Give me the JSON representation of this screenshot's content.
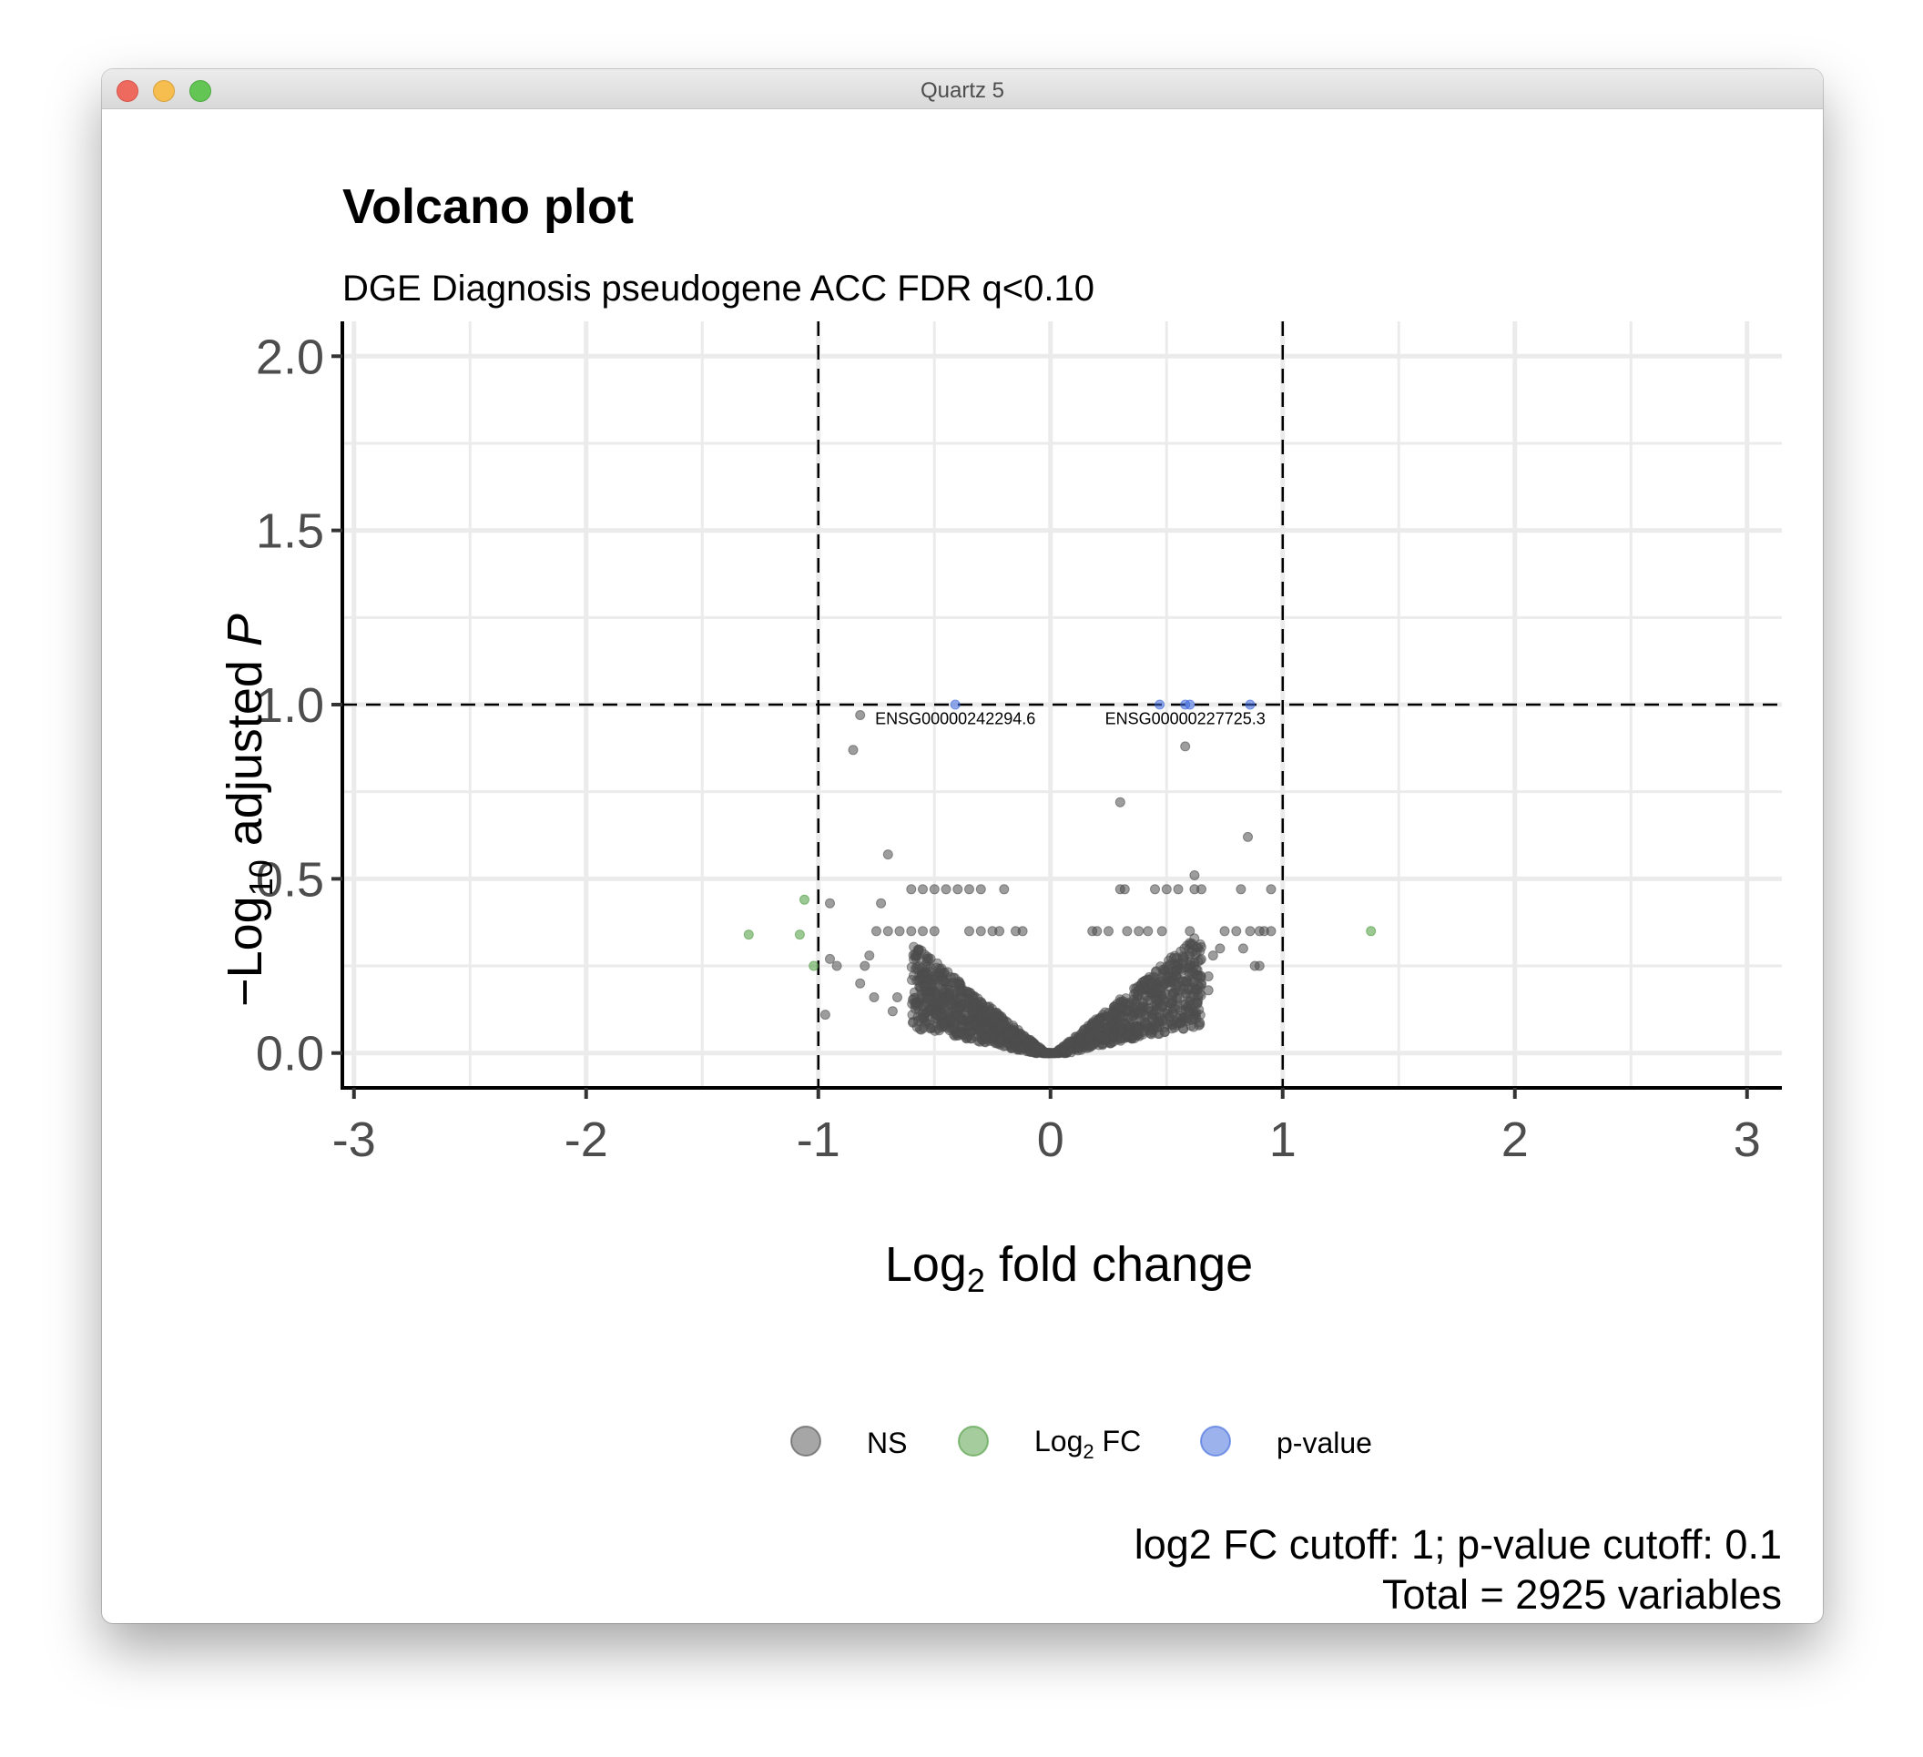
{
  "window": {
    "title": "Quartz 5"
  },
  "chart_data": {
    "type": "scatter",
    "title": "Volcano plot",
    "subtitle": "DGE Diagnosis pseudogene ACC FDR q<0.10",
    "xlabel": {
      "base": "Log",
      "sub": "2",
      "rest": " fold change"
    },
    "ylabel": {
      "prefix": "−Log",
      "sub": "10",
      "middle": " adjusted ",
      "italic": "P"
    },
    "xlim": [
      -3.05,
      3.15
    ],
    "ylim": [
      -0.1,
      2.1
    ],
    "xticks": [
      -3,
      -2,
      -1,
      0,
      1,
      2,
      3
    ],
    "xtick_labels": [
      "-3",
      "-2",
      "-1",
      "0",
      "1",
      "2",
      "3"
    ],
    "yticks": [
      0,
      0.5,
      1,
      1.5,
      2
    ],
    "ytick_labels": [
      "0.0",
      "0.5",
      "1.0",
      "1.5",
      "2.0"
    ],
    "grid": true,
    "cutoffs": {
      "fc": [
        -1,
        1
      ],
      "p": 1
    },
    "legend": {
      "position": "bottom",
      "items": [
        {
          "label": "NS",
          "color": "#4d4d4d"
        },
        {
          "label_base": "Log",
          "label_sub": "2",
          "label_rest": " FC",
          "color": "#4a9a3a"
        },
        {
          "label": "p-value",
          "color": "#3a66dc"
        }
      ]
    },
    "caption": [
      "log2 FC cutoff: 1; p-value cutoff: 0.1",
      "Total = 2925 variables"
    ],
    "series": [
      {
        "name": "NS",
        "color": "#4d4d4d",
        "points": [
          [
            -0.82,
            0.97
          ],
          [
            -0.85,
            0.87
          ],
          [
            -0.7,
            0.57
          ],
          [
            -0.73,
            0.43
          ],
          [
            -0.95,
            0.43
          ],
          [
            -0.95,
            0.27
          ],
          [
            -0.92,
            0.25
          ],
          [
            -0.97,
            0.11
          ],
          [
            -0.6,
            0.47
          ],
          [
            -0.55,
            0.47
          ],
          [
            -0.5,
            0.47
          ],
          [
            -0.45,
            0.47
          ],
          [
            -0.4,
            0.47
          ],
          [
            -0.35,
            0.47
          ],
          [
            -0.3,
            0.47
          ],
          [
            -0.2,
            0.47
          ],
          [
            -0.75,
            0.35
          ],
          [
            -0.7,
            0.35
          ],
          [
            -0.65,
            0.35
          ],
          [
            -0.6,
            0.35
          ],
          [
            -0.55,
            0.35
          ],
          [
            -0.5,
            0.35
          ],
          [
            -0.35,
            0.35
          ],
          [
            -0.3,
            0.35
          ],
          [
            -0.25,
            0.35
          ],
          [
            -0.22,
            0.35
          ],
          [
            -0.15,
            0.35
          ],
          [
            -0.12,
            0.35
          ],
          [
            -0.8,
            0.25
          ],
          [
            -0.78,
            0.28
          ],
          [
            -0.82,
            0.2
          ],
          [
            -0.76,
            0.16
          ],
          [
            -0.66,
            0.16
          ],
          [
            -0.68,
            0.12
          ],
          [
            0.85,
            0.62
          ],
          [
            0.3,
            0.72
          ],
          [
            0.58,
            0.88
          ],
          [
            0.62,
            0.51
          ],
          [
            0.62,
            0.47
          ],
          [
            0.3,
            0.47
          ],
          [
            0.32,
            0.47
          ],
          [
            0.45,
            0.47
          ],
          [
            0.5,
            0.47
          ],
          [
            0.55,
            0.47
          ],
          [
            0.65,
            0.47
          ],
          [
            0.82,
            0.47
          ],
          [
            0.95,
            0.47
          ],
          [
            0.18,
            0.35
          ],
          [
            0.2,
            0.35
          ],
          [
            0.25,
            0.35
          ],
          [
            0.33,
            0.35
          ],
          [
            0.38,
            0.35
          ],
          [
            0.42,
            0.35
          ],
          [
            0.48,
            0.35
          ],
          [
            0.6,
            0.35
          ],
          [
            0.75,
            0.35
          ],
          [
            0.8,
            0.35
          ],
          [
            0.86,
            0.35
          ],
          [
            0.9,
            0.35
          ],
          [
            0.92,
            0.35
          ],
          [
            0.95,
            0.35
          ],
          [
            0.88,
            0.25
          ],
          [
            0.9,
            0.25
          ],
          [
            0.62,
            0.26
          ],
          [
            0.68,
            0.22
          ],
          [
            0.68,
            0.18
          ],
          [
            0.65,
            0.2
          ],
          [
            0.7,
            0.28
          ],
          [
            0.73,
            0.3
          ],
          [
            0.83,
            0.3
          ],
          [
            0.6,
            0.12
          ],
          [
            0.58,
            0.1
          ],
          [
            0.55,
            0.1
          ],
          [
            0.5,
            0.12
          ]
        ]
      },
      {
        "name": "Log2 FC",
        "color": "#4a9a3a",
        "points": [
          [
            -1.3,
            0.34
          ],
          [
            -1.08,
            0.34
          ],
          [
            -1.06,
            0.44
          ],
          [
            -1.02,
            0.25
          ],
          [
            1.38,
            0.35
          ]
        ]
      },
      {
        "name": "p-value",
        "color": "#3a66dc",
        "points": [
          [
            -0.41,
            1.0
          ],
          [
            0.47,
            1.0
          ],
          [
            0.58,
            1.0
          ],
          [
            0.6,
            1.0
          ],
          [
            0.86,
            1.0
          ]
        ]
      }
    ],
    "annotations": [
      {
        "text": "ENSG00000242294.6",
        "x": -0.41,
        "y": 0.96
      },
      {
        "text": "ENSG00000227725.3",
        "x": 0.58,
        "y": 0.96
      }
    ]
  }
}
